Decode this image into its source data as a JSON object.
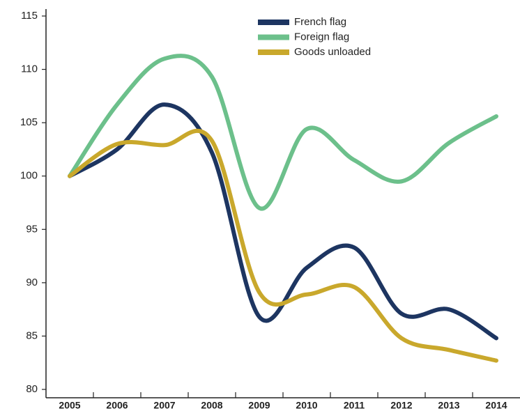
{
  "chart_data": {
    "type": "line",
    "categories": [
      "2005",
      "2006",
      "2007",
      "2008",
      "2009",
      "2010",
      "2011",
      "2012",
      "2013",
      "2014"
    ],
    "series": [
      {
        "name": "French flag",
        "color": "#1d3561",
        "values": [
          100,
          102.5,
          106.7,
          102.2,
          86.8,
          91.4,
          93.3,
          87.1,
          87.5,
          84.8
        ]
      },
      {
        "name": "Foreign flag",
        "color": "#6cc08b",
        "values": [
          100,
          106.7,
          111,
          109.3,
          97,
          104.4,
          101.5,
          99.5,
          103.1,
          105.6
        ]
      },
      {
        "name": "Goods unloaded",
        "color": "#c9a82c",
        "values": [
          100,
          103,
          102.9,
          103.3,
          89.1,
          88.9,
          89.6,
          84.8,
          83.7,
          82.7
        ]
      }
    ],
    "ylim": [
      80,
      115
    ],
    "yticks": [
      80,
      85,
      90,
      95,
      100,
      105,
      110,
      115
    ],
    "legend": "top",
    "smooth": true
  }
}
